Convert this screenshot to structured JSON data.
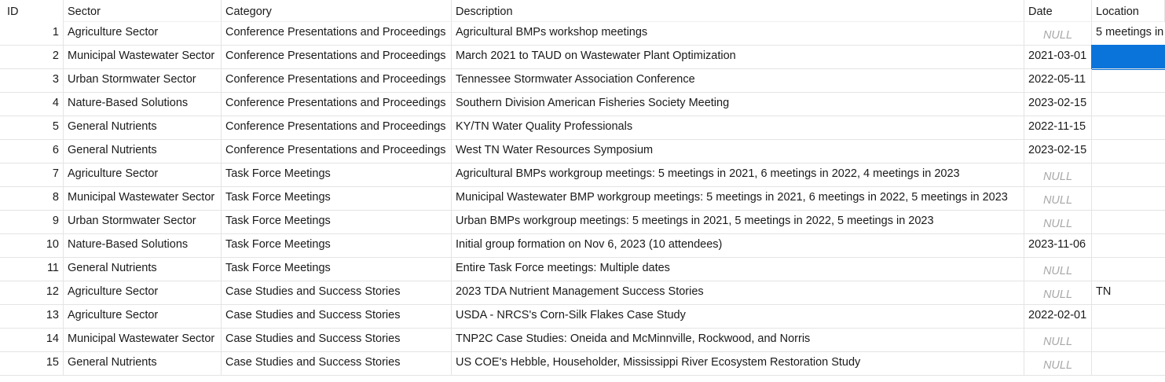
{
  "columns": {
    "id": "ID",
    "sector": "Sector",
    "category": "Category",
    "description": "Description",
    "date": "Date",
    "location": "Location"
  },
  "null_text": "NULL",
  "rows": [
    {
      "id": "1",
      "sector": "Agriculture Sector",
      "category": "Conference Presentations and Proceedings",
      "description": "Agricultural BMPs workshop meetings",
      "date": null,
      "location": "5 meetings in"
    },
    {
      "id": "2",
      "sector": "Municipal Wastewater Sector",
      "category": "Conference Presentations and Proceedings",
      "description": "March 2021 to TAUD on Wastewater Plant Optimization",
      "date": "2021-03-01",
      "location": ""
    },
    {
      "id": "3",
      "sector": "Urban Stormwater Sector",
      "category": "Conference Presentations and Proceedings",
      "description": "Tennessee Stormwater Association Conference",
      "date": "2022-05-11",
      "location": ""
    },
    {
      "id": "4",
      "sector": "Nature-Based Solutions",
      "category": "Conference Presentations and Proceedings",
      "description": "Southern Division American Fisheries Society Meeting",
      "date": "2023-02-15",
      "location": ""
    },
    {
      "id": "5",
      "sector": "General Nutrients",
      "category": "Conference Presentations and Proceedings",
      "description": "KY/TN Water Quality Professionals",
      "date": "2022-11-15",
      "location": ""
    },
    {
      "id": "6",
      "sector": "General Nutrients",
      "category": "Conference Presentations and Proceedings",
      "description": "West TN Water Resources Symposium",
      "date": "2023-02-15",
      "location": ""
    },
    {
      "id": "7",
      "sector": "Agriculture Sector",
      "category": "Task Force Meetings",
      "description": "Agricultural BMPs workgroup meetings: 5 meetings in 2021, 6 meetings in 2022, 4 meetings in 2023",
      "date": null,
      "location": ""
    },
    {
      "id": "8",
      "sector": "Municipal Wastewater Sector",
      "category": "Task Force Meetings",
      "description": "Municipal Wastewater BMP workgroup meetings: 5 meetings in 2021, 6 meetings in 2022, 5 meetings in 2023",
      "date": null,
      "location": ""
    },
    {
      "id": "9",
      "sector": "Urban Stormwater Sector",
      "category": "Task Force Meetings",
      "description": "Urban BMPs workgroup meetings: 5 meetings in 2021, 5 meetings in 2022, 5 meetings in 2023",
      "date": null,
      "location": ""
    },
    {
      "id": "10",
      "sector": "Nature-Based Solutions",
      "category": "Task Force Meetings",
      "description": "Initial group formation on Nov 6, 2023 (10 attendees)",
      "date": "2023-11-06",
      "location": ""
    },
    {
      "id": "11",
      "sector": "General Nutrients",
      "category": "Task Force Meetings",
      "description": "Entire Task Force meetings: Multiple dates",
      "date": null,
      "location": ""
    },
    {
      "id": "12",
      "sector": "Agriculture Sector",
      "category": "Case Studies and Success Stories",
      "description": "2023 TDA Nutrient Management Success Stories",
      "date": null,
      "location": "TN"
    },
    {
      "id": "13",
      "sector": "Agriculture Sector",
      "category": "Case Studies and Success Stories",
      "description": "USDA - NRCS's Corn-Silk Flakes Case Study",
      "date": "2022-02-01",
      "location": ""
    },
    {
      "id": "14",
      "sector": "Municipal Wastewater Sector",
      "category": "Case Studies and Success Stories",
      "description": "TNP2C Case Studies: Oneida and McMinnville, Rockwood, and Norris",
      "date": null,
      "location": ""
    },
    {
      "id": "15",
      "sector": "General Nutrients",
      "category": "Case Studies and Success Stories",
      "description": "US COE's Hebble, Householder, Mississippi River Ecosystem Restoration Study",
      "date": null,
      "location": ""
    }
  ],
  "selection": {
    "row": 2,
    "column": "location"
  },
  "colors": {
    "selection": "#0a74da",
    "null_text": "#a8a8a8",
    "grid_lines": "#e4e4e4"
  }
}
